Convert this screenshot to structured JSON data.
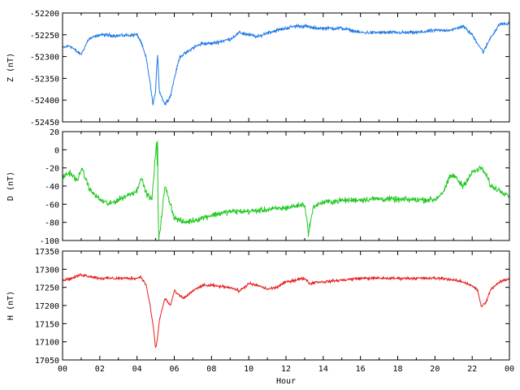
{
  "chart_data": [
    {
      "type": "line",
      "ylabel": "Z (nT)",
      "ylim": [
        -52450,
        -52200
      ],
      "yticks": [
        -52450,
        -52400,
        -52350,
        -52300,
        -52250,
        -52200
      ],
      "color": "#1e78e6",
      "noise": 3,
      "x": [
        0,
        0.4,
        0.8,
        1.0,
        1.4,
        2.0,
        3.0,
        4.0,
        4.2,
        4.5,
        4.7,
        4.85,
        5.0,
        5.1,
        5.2,
        5.5,
        5.8,
        6.0,
        6.3,
        6.7,
        7.0,
        7.5,
        8.0,
        8.5,
        9.0,
        9.5,
        10.0,
        10.5,
        11.0,
        11.5,
        12.0,
        12.5,
        13.0,
        13.5,
        14.0,
        15.0,
        16.0,
        17.0,
        18.0,
        19.0,
        20.0,
        20.5,
        21.0,
        21.5,
        22.0,
        22.3,
        22.6,
        23.0,
        23.5,
        24.0
      ],
      "y": [
        -52280,
        -52275,
        -52290,
        -52295,
        -52260,
        -52250,
        -52252,
        -52250,
        -52265,
        -52305,
        -52360,
        -52410,
        -52380,
        -52290,
        -52380,
        -52410,
        -52390,
        -52350,
        -52300,
        -52290,
        -52280,
        -52270,
        -52270,
        -52265,
        -52260,
        -52245,
        -52250,
        -52255,
        -52245,
        -52240,
        -52235,
        -52230,
        -52230,
        -52235,
        -52235,
        -52235,
        -52245,
        -52245,
        -52245,
        -52245,
        -52240,
        -52240,
        -52238,
        -52230,
        -52250,
        -52270,
        -52290,
        -52255,
        -52225,
        -52225
      ]
    },
    {
      "type": "line",
      "ylabel": "D (nT)",
      "ylim": [
        -100,
        20
      ],
      "yticks": [
        -100,
        -80,
        -60,
        -40,
        -20,
        0,
        20
      ],
      "color": "#1ec81e",
      "noise": 2.5,
      "x": [
        0,
        0.4,
        0.8,
        1.0,
        1.5,
        2.0,
        2.5,
        3.0,
        3.5,
        4.0,
        4.2,
        4.5,
        4.8,
        4.9,
        5.05,
        5.15,
        5.2,
        5.5,
        5.8,
        6.0,
        6.5,
        7.0,
        8.0,
        9.0,
        10.0,
        11.0,
        12.0,
        12.5,
        13.0,
        13.2,
        13.5,
        14.0,
        15.0,
        16.0,
        17.0,
        18.0,
        19.0,
        20.0,
        20.5,
        20.8,
        21.0,
        21.5,
        22.0,
        22.5,
        22.8,
        23.0,
        23.5,
        24.0
      ],
      "y": [
        -30,
        -25,
        -35,
        -20,
        -45,
        -55,
        -60,
        -55,
        -50,
        -45,
        -30,
        -48,
        -55,
        -30,
        10,
        -80,
        -95,
        -40,
        -60,
        -75,
        -80,
        -78,
        -72,
        -68,
        -68,
        -66,
        -64,
        -62,
        -60,
        -90,
        -62,
        -58,
        -56,
        -55,
        -54,
        -55,
        -55,
        -55,
        -45,
        -30,
        -28,
        -40,
        -25,
        -20,
        -30,
        -40,
        -45,
        -50
      ],
      "spikes": [
        [
          5.1,
          10
        ],
        [
          5.18,
          -100
        ],
        [
          13.2,
          -96
        ]
      ]
    },
    {
      "type": "line",
      "ylabel": "H (nT)",
      "ylim": [
        17050,
        17350
      ],
      "yticks": [
        17050,
        17100,
        17150,
        17200,
        17250,
        17300,
        17350
      ],
      "color": "#e61e1e",
      "noise": 3,
      "x": [
        0,
        0.5,
        1.0,
        1.5,
        2.0,
        3.0,
        4.0,
        4.2,
        4.5,
        4.7,
        4.9,
        5.0,
        5.1,
        5.2,
        5.5,
        5.8,
        6.0,
        6.2,
        6.5,
        7.0,
        7.5,
        8.0,
        9.0,
        9.5,
        10.0,
        10.5,
        11.0,
        11.5,
        12.0,
        12.5,
        13.0,
        13.3,
        13.6,
        14.0,
        15.0,
        16.0,
        17.0,
        18.0,
        19.0,
        20.0,
        20.5,
        21.0,
        21.5,
        22.0,
        22.3,
        22.5,
        22.8,
        23.0,
        23.5,
        24.0
      ],
      "y": [
        17270,
        17275,
        17285,
        17280,
        17275,
        17275,
        17275,
        17280,
        17255,
        17200,
        17130,
        17080,
        17110,
        17160,
        17220,
        17200,
        17240,
        17230,
        17220,
        17240,
        17255,
        17255,
        17250,
        17240,
        17260,
        17255,
        17245,
        17250,
        17265,
        17270,
        17275,
        17260,
        17265,
        17265,
        17270,
        17275,
        17275,
        17275,
        17275,
        17275,
        17275,
        17270,
        17265,
        17255,
        17240,
        17195,
        17215,
        17245,
        17265,
        17275
      ]
    }
  ],
  "x_axis": {
    "label": "Hour",
    "range": [
      0,
      24
    ],
    "tick_labels": [
      "00",
      "02",
      "04",
      "06",
      "08",
      "10",
      "12",
      "14",
      "16",
      "18",
      "20",
      "22",
      "00"
    ]
  },
  "grid": false
}
